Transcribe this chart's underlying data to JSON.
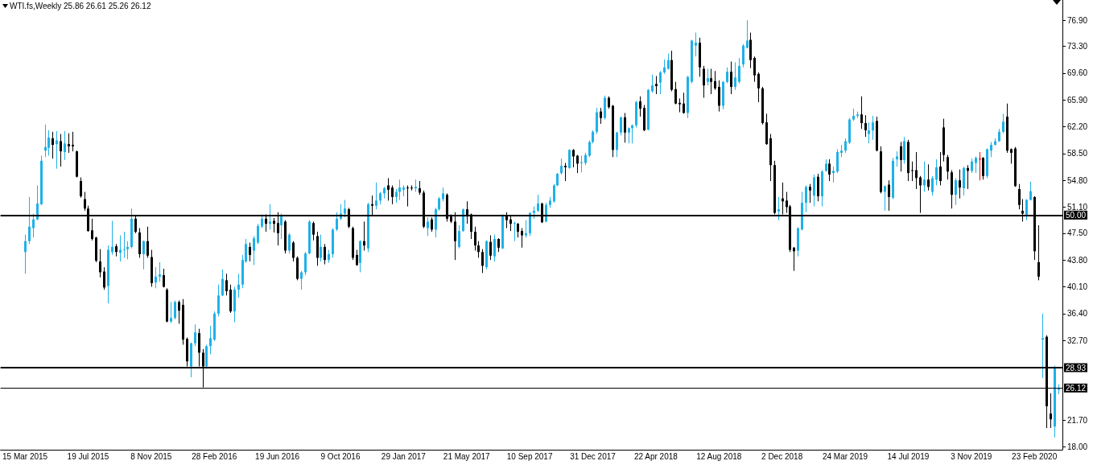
{
  "chart_data": {
    "type": "candlestick",
    "title": "WTI.fs,Weekly 25.86 26.61 25.26 26.12",
    "categories": [
      "15 Mar 2015",
      null,
      null,
      null,
      null,
      null,
      null,
      null,
      null,
      null,
      null,
      null,
      null,
      null,
      null,
      null,
      "19 Jul 2015",
      null,
      null,
      null,
      null,
      null,
      null,
      null,
      null,
      null,
      null,
      null,
      null,
      null,
      null,
      null,
      "8 Nov 2015",
      null,
      null,
      null,
      null,
      null,
      null,
      null,
      null,
      null,
      null,
      null,
      null,
      null,
      null,
      null,
      "28 Feb 2016",
      null,
      null,
      null,
      null,
      null,
      null,
      null,
      null,
      null,
      null,
      null,
      null,
      null,
      null,
      null,
      "19 Jun 2016",
      null,
      null,
      null,
      null,
      null,
      null,
      null,
      null,
      null,
      null,
      null,
      null,
      null,
      null,
      null,
      "9 Oct 2016",
      null,
      null,
      null,
      null,
      null,
      null,
      null,
      null,
      null,
      null,
      null,
      null,
      null,
      null,
      null,
      "29 Jan 2017",
      null,
      null,
      null,
      null,
      null,
      null,
      null,
      null,
      null,
      null,
      null,
      null,
      null,
      null,
      null,
      "21 May 2017",
      null,
      null,
      null,
      null,
      null,
      null,
      null,
      null,
      null,
      null,
      null,
      null,
      null,
      null,
      null,
      "10 Sep 2017",
      null,
      null,
      null,
      null,
      null,
      null,
      null,
      null,
      null,
      null,
      null,
      null,
      null,
      null,
      null,
      "31 Dec 2017",
      null,
      null,
      null,
      null,
      null,
      null,
      null,
      null,
      null,
      null,
      null,
      null,
      null,
      null,
      null,
      "22 Apr 2018",
      null,
      null,
      null,
      null,
      null,
      null,
      null,
      null,
      null,
      null,
      null,
      null,
      null,
      null,
      null,
      "12 Aug 2018",
      null,
      null,
      null,
      null,
      null,
      null,
      null,
      null,
      null,
      null,
      null,
      null,
      null,
      null,
      null,
      "2 Dec 2018",
      null,
      null,
      null,
      null,
      null,
      null,
      null,
      null,
      null,
      null,
      null,
      null,
      null,
      null,
      null,
      "24 Mar 2019",
      null,
      null,
      null,
      null,
      null,
      null,
      null,
      null,
      null,
      null,
      null,
      null,
      null,
      null,
      null,
      "14 Jul 2019",
      null,
      null,
      null,
      null,
      null,
      null,
      null,
      null,
      null,
      null,
      null,
      null,
      null,
      null,
      null,
      "3 Nov 2019",
      null,
      null,
      null,
      null,
      null,
      null,
      null,
      null,
      null,
      null,
      null,
      null,
      null,
      null,
      null,
      "23 Feb 2020",
      null,
      null,
      null,
      null,
      null,
      null
    ],
    "ohlc": [
      [
        44.9,
        47.3,
        41.9,
        46.4
      ],
      [
        46.4,
        52.5,
        46.0,
        48.4
      ],
      [
        48.2,
        50.2,
        46.9,
        49.4
      ],
      [
        49.4,
        54.1,
        49.3,
        51.6
      ],
      [
        51.5,
        58.2,
        51.4,
        57.5
      ],
      [
        58.9,
        62.5,
        58.0,
        59.4
      ],
      [
        59.3,
        61.7,
        58.2,
        60.7
      ],
      [
        60.6,
        61.5,
        57.8,
        59.7
      ],
      [
        59.8,
        61.6,
        56.4,
        60.3
      ],
      [
        60.2,
        61.2,
        56.7,
        58.8
      ],
      [
        58.7,
        61.6,
        57.6,
        59.9
      ],
      [
        59.8,
        61.3,
        58.6,
        59.5
      ],
      [
        59.7,
        61.5,
        58.8,
        59.5
      ],
      [
        58.8,
        58.9,
        55.2,
        55.3
      ],
      [
        54.7,
        55.2,
        52.4,
        52.6
      ],
      [
        52.2,
        53.2,
        50.6,
        50.9
      ],
      [
        50.9,
        51.3,
        47.7,
        47.8
      ],
      [
        47.9,
        49.5,
        46.5,
        46.7
      ],
      [
        46.9,
        47.0,
        43.5,
        43.7
      ],
      [
        43.6,
        45.3,
        41.4,
        42.1
      ],
      [
        42.2,
        42.8,
        39.7,
        40.0
      ],
      [
        40.2,
        45.8,
        37.8,
        45.2
      ],
      [
        44.9,
        49.2,
        44.5,
        45.6
      ],
      [
        45.7,
        46.0,
        44.3,
        44.9
      ],
      [
        44.8,
        47.2,
        43.6,
        45.2
      ],
      [
        45.2,
        47.7,
        44.1,
        45.3
      ],
      [
        45.3,
        46.4,
        43.9,
        45.6
      ],
      [
        45.6,
        50.9,
        45.4,
        49.5
      ],
      [
        49.5,
        50.0,
        47.5,
        47.7
      ],
      [
        47.6,
        48.2,
        44.1,
        44.6
      ],
      [
        44.6,
        46.5,
        42.5,
        46.4
      ],
      [
        46.4,
        48.4,
        44.1,
        44.4
      ],
      [
        44.2,
        45.2,
        40.1,
        40.6
      ],
      [
        40.7,
        42.8,
        39.9,
        41.5
      ],
      [
        41.5,
        43.5,
        40.8,
        41.8
      ],
      [
        41.7,
        42.6,
        40.0,
        40.1
      ],
      [
        39.7,
        39.9,
        35.2,
        35.3
      ],
      [
        35.3,
        38.0,
        35.1,
        35.8
      ],
      [
        35.8,
        38.2,
        35.6,
        38.0
      ],
      [
        38.0,
        38.2,
        35.0,
        36.8
      ],
      [
        37.6,
        38.4,
        32.1,
        32.8
      ],
      [
        32.9,
        33.1,
        29.1,
        29.8
      ],
      [
        29.1,
        32.4,
        27.6,
        32.3
      ],
      [
        32.3,
        34.9,
        31.9,
        33.8
      ],
      [
        33.7,
        34.3,
        29.1,
        31.0
      ],
      [
        31.0,
        31.5,
        26.2,
        29.1
      ],
      [
        29.1,
        32.1,
        28.8,
        31.9
      ],
      [
        31.9,
        34.7,
        30.8,
        33.0
      ],
      [
        32.8,
        36.7,
        32.6,
        36.4
      ],
      [
        36.4,
        40.4,
        36.0,
        38.9
      ],
      [
        38.9,
        42.5,
        38.8,
        41.2
      ],
      [
        41.0,
        41.9,
        38.9,
        39.5
      ],
      [
        39.7,
        40.4,
        36.5,
        36.7
      ],
      [
        36.7,
        40.1,
        35.2,
        39.7
      ],
      [
        39.7,
        41.9,
        38.6,
        40.4
      ],
      [
        40.4,
        44.5,
        39.9,
        43.8
      ],
      [
        43.6,
        46.7,
        43.4,
        46.0
      ],
      [
        45.6,
        46.2,
        43.6,
        44.5
      ],
      [
        45.1,
        47.1,
        43.1,
        46.8
      ],
      [
        46.2,
        48.8,
        46.0,
        48.5
      ],
      [
        48.4,
        50.1,
        48.2,
        49.5
      ],
      [
        49.5,
        50.1,
        47.7,
        48.8
      ],
      [
        48.8,
        51.5,
        48.0,
        49.1
      ],
      [
        49.2,
        49.6,
        47.6,
        48.8
      ],
      [
        48.9,
        50.4,
        45.8,
        47.5
      ],
      [
        48.6,
        50.2,
        46.7,
        49.8
      ],
      [
        49.1,
        49.3,
        44.7,
        45.1
      ],
      [
        45.1,
        47.5,
        44.7,
        47.3
      ],
      [
        46.2,
        46.4,
        43.6,
        44.1
      ],
      [
        44.1,
        44.3,
        41.0,
        41.2
      ],
      [
        41.2,
        42.3,
        39.7,
        42.1
      ],
      [
        42.1,
        44.9,
        41.7,
        44.7
      ],
      [
        44.7,
        49.3,
        44.6,
        49.1
      ],
      [
        48.9,
        49.1,
        46.5,
        47.3
      ],
      [
        47.1,
        47.7,
        43.0,
        44.1
      ],
      [
        44.1,
        47.3,
        43.6,
        45.6
      ],
      [
        45.6,
        46.0,
        43.2,
        43.8
      ],
      [
        43.8,
        45.2,
        43.4,
        44.6
      ],
      [
        44.6,
        48.2,
        44.1,
        48.0
      ],
      [
        48.0,
        50.4,
        47.8,
        49.5
      ],
      [
        49.5,
        51.5,
        49.3,
        50.2
      ],
      [
        50.2,
        52.1,
        49.7,
        50.9
      ],
      [
        50.8,
        51.0,
        48.2,
        48.4
      ],
      [
        48.2,
        48.4,
        43.8,
        44.1
      ],
      [
        44.5,
        45.2,
        43.0,
        43.1
      ],
      [
        43.4,
        46.5,
        42.1,
        46.4
      ],
      [
        46.4,
        49.1,
        45.1,
        45.8
      ],
      [
        45.4,
        51.7,
        44.9,
        51.5
      ],
      [
        51.5,
        52.7,
        49.9,
        51.3
      ],
      [
        51.3,
        54.5,
        50.8,
        52.0
      ],
      [
        52.0,
        53.2,
        51.5,
        53.0
      ],
      [
        53.0,
        53.9,
        52.3,
        53.7
      ],
      [
        54.1,
        55.1,
        52.0,
        53.5
      ],
      [
        53.8,
        54.1,
        51.5,
        52.5
      ],
      [
        52.5,
        53.6,
        51.7,
        53.2
      ],
      [
        53.2,
        54.9,
        52.1,
        53.8
      ],
      [
        53.5,
        54.1,
        52.6,
        53.8
      ],
      [
        53.8,
        54.1,
        51.2,
        53.7
      ],
      [
        53.8,
        54.1,
        53.4,
        53.7
      ],
      [
        53.7,
        54.9,
        53.2,
        53.9
      ],
      [
        53.7,
        54.7,
        52.8,
        53.1
      ],
      [
        53.1,
        53.4,
        48.2,
        48.4
      ],
      [
        48.2,
        49.7,
        47.1,
        49.1
      ],
      [
        49.4,
        49.7,
        47.7,
        48.0
      ],
      [
        48.0,
        51.0,
        46.9,
        50.8
      ],
      [
        50.8,
        52.5,
        50.6,
        52.3
      ],
      [
        52.2,
        53.8,
        51.9,
        53.0
      ],
      [
        52.8,
        53.0,
        49.1,
        49.5
      ],
      [
        49.8,
        50.1,
        48.9,
        49.1
      ],
      [
        49.1,
        50.4,
        43.8,
        46.4
      ],
      [
        45.6,
        48.6,
        45.4,
        47.8
      ],
      [
        47.8,
        50.9,
        47.7,
        50.8
      ],
      [
        50.8,
        51.9,
        48.8,
        49.8
      ],
      [
        50.1,
        50.2,
        46.7,
        47.7
      ],
      [
        47.7,
        48.4,
        45.1,
        45.8
      ],
      [
        45.8,
        46.4,
        44.1,
        44.9
      ],
      [
        44.9,
        45.3,
        42.0,
        43.0
      ],
      [
        42.8,
        46.5,
        42.5,
        46.4
      ],
      [
        46.3,
        47.2,
        43.8,
        44.4
      ],
      [
        44.3,
        47.3,
        43.6,
        46.7
      ],
      [
        46.7,
        46.8,
        44.9,
        45.5
      ],
      [
        45.4,
        50.1,
        45.3,
        49.8
      ],
      [
        50.0,
        50.4,
        48.2,
        49.3
      ],
      [
        49.4,
        50.0,
        47.8,
        48.8
      ],
      [
        48.8,
        49.1,
        46.4,
        48.9
      ],
      [
        48.8,
        48.9,
        46.9,
        47.7
      ],
      [
        47.8,
        48.2,
        45.5,
        47.2
      ],
      [
        47.2,
        49.3,
        46.9,
        47.5
      ],
      [
        47.5,
        50.4,
        47.1,
        50.3
      ],
      [
        50.3,
        51.2,
        49.5,
        50.6
      ],
      [
        50.6,
        52.8,
        50.4,
        51.6
      ],
      [
        51.6,
        51.7,
        48.9,
        49.0
      ],
      [
        49.1,
        51.7,
        49.0,
        51.4
      ],
      [
        51.4,
        52.5,
        51.0,
        52.0
      ],
      [
        51.9,
        54.3,
        51.7,
        54.1
      ],
      [
        54.1,
        55.8,
        54.0,
        55.7
      ],
      [
        55.8,
        57.8,
        55.6,
        56.8
      ],
      [
        56.8,
        57.2,
        54.7,
        56.6
      ],
      [
        56.5,
        59.1,
        56.4,
        59.0
      ],
      [
        59.0,
        59.1,
        56.6,
        58.1
      ],
      [
        58.2,
        58.3,
        55.8,
        57.1
      ],
      [
        57.2,
        58.2,
        55.9,
        57.3
      ],
      [
        57.2,
        58.6,
        56.9,
        58.3
      ],
      [
        58.2,
        60.3,
        58.0,
        60.1
      ],
      [
        60.1,
        61.7,
        59.9,
        61.5
      ],
      [
        61.5,
        64.8,
        61.2,
        64.2
      ],
      [
        64.3,
        64.8,
        62.6,
        63.4
      ],
      [
        63.4,
        66.5,
        63.2,
        66.2
      ],
      [
        66.2,
        66.4,
        64.7,
        64.9
      ],
      [
        65.1,
        65.2,
        58.0,
        59.0
      ],
      [
        59.0,
        61.5,
        58.0,
        61.4
      ],
      [
        61.4,
        63.6,
        61.0,
        63.5
      ],
      [
        63.5,
        64.1,
        60.0,
        61.4
      ],
      [
        61.4,
        62.1,
        59.9,
        62.0
      ],
      [
        62.0,
        62.5,
        59.9,
        62.4
      ],
      [
        62.4,
        65.8,
        62.1,
        65.6
      ],
      [
        65.7,
        66.4,
        63.6,
        64.7
      ],
      [
        64.8,
        65.2,
        61.6,
        61.7
      ],
      [
        61.8,
        67.4,
        61.7,
        67.3
      ],
      [
        67.1,
        69.4,
        66.9,
        67.9
      ],
      [
        68.1,
        69.2,
        66.7,
        67.8
      ],
      [
        68.3,
        69.9,
        66.7,
        69.7
      ],
      [
        69.7,
        71.5,
        69.5,
        70.4
      ],
      [
        70.2,
        72.3,
        70.1,
        71.4
      ],
      [
        71.4,
        72.7,
        67.1,
        67.3
      ],
      [
        67.4,
        68.4,
        65.3,
        65.4
      ],
      [
        65.5,
        66.1,
        64.2,
        65.3
      ],
      [
        65.4,
        66.9,
        64.0,
        64.1
      ],
      [
        64.1,
        69.2,
        63.4,
        69.1
      ],
      [
        68.4,
        74.2,
        68.2,
        74.1
      ],
      [
        73.4,
        75.2,
        71.9,
        73.8
      ],
      [
        73.8,
        74.5,
        69.1,
        70.4
      ],
      [
        70.2,
        70.6,
        66.2,
        67.9
      ],
      [
        68.4,
        70.2,
        67.9,
        68.9
      ],
      [
        68.9,
        70.2,
        66.7,
        68.4
      ],
      [
        68.5,
        69.9,
        67.3,
        67.5
      ],
      [
        67.7,
        68.6,
        64.3,
        65.1
      ],
      [
        65.1,
        68.5,
        64.6,
        68.4
      ],
      [
        68.4,
        70.4,
        68.2,
        69.8
      ],
      [
        69.8,
        71.2,
        66.7,
        67.7
      ],
      [
        67.7,
        71.1,
        67.3,
        69.0
      ],
      [
        68.4,
        71.7,
        68.2,
        70.6
      ],
      [
        70.8,
        73.6,
        70.4,
        73.4
      ],
      [
        73.1,
        76.9,
        73.0,
        74.1
      ],
      [
        74.2,
        75.2,
        70.3,
        71.4
      ],
      [
        71.7,
        71.9,
        68.4,
        69.3
      ],
      [
        69.5,
        69.7,
        65.6,
        67.5
      ],
      [
        67.5,
        67.7,
        62.5,
        62.7
      ],
      [
        62.8,
        64.0,
        59.7,
        59.8
      ],
      [
        60.6,
        61.2,
        54.7,
        56.9
      ],
      [
        56.9,
        57.5,
        50.1,
        50.3
      ],
      [
        50.5,
        52.5,
        49.3,
        50.8
      ],
      [
        52.3,
        54.5,
        50.1,
        51.9
      ],
      [
        52.0,
        53.2,
        50.3,
        51.1
      ],
      [
        51.2,
        51.4,
        44.9,
        45.2
      ],
      [
        45.5,
        45.6,
        42.3,
        45.0
      ],
      [
        45.1,
        48.3,
        44.3,
        48.2
      ],
      [
        48.0,
        53.2,
        47.9,
        51.7
      ],
      [
        51.7,
        54.1,
        50.4,
        53.9
      ],
      [
        53.9,
        54.3,
        51.7,
        53.4
      ],
      [
        52.7,
        55.6,
        51.2,
        55.2
      ],
      [
        55.3,
        55.7,
        51.9,
        52.6
      ],
      [
        52.6,
        56.2,
        51.2,
        56.0
      ],
      [
        56.1,
        57.7,
        56.0,
        57.1
      ],
      [
        57.1,
        57.7,
        54.7,
        55.6
      ],
      [
        55.8,
        56.7,
        54.5,
        56.1
      ],
      [
        56.0,
        59.1,
        55.8,
        58.7
      ],
      [
        58.6,
        59.7,
        58.0,
        58.9
      ],
      [
        58.9,
        60.6,
        58.6,
        60.2
      ],
      [
        60.0,
        63.4,
        59.8,
        63.2
      ],
      [
        63.2,
        64.7,
        63.0,
        63.7
      ],
      [
        63.7,
        64.3,
        63.4,
        63.9
      ],
      [
        63.9,
        66.4,
        61.9,
        62.7
      ],
      [
        62.7,
        63.8,
        60.8,
        61.7
      ],
      [
        61.2,
        62.8,
        59.9,
        61.7
      ],
      [
        61.7,
        63.7,
        60.4,
        62.8
      ],
      [
        63.0,
        63.6,
        58.8,
        58.9
      ],
      [
        58.8,
        59.5,
        53.0,
        53.2
      ],
      [
        53.2,
        54.1,
        50.6,
        54.0
      ],
      [
        54.2,
        54.8,
        50.6,
        52.5
      ],
      [
        52.4,
        57.9,
        52.2,
        57.5
      ],
      [
        57.7,
        58.8,
        56.7,
        58.1
      ],
      [
        59.5,
        60.1,
        56.0,
        57.6
      ],
      [
        57.6,
        60.8,
        57.1,
        60.2
      ],
      [
        60.1,
        60.4,
        54.7,
        55.8
      ],
      [
        56.2,
        57.4,
        54.7,
        56.1
      ],
      [
        56.2,
        58.7,
        53.6,
        55.1
      ],
      [
        55.2,
        55.4,
        50.3,
        54.1
      ],
      [
        54.1,
        57.4,
        53.2,
        54.9
      ],
      [
        54.9,
        57.0,
        53.4,
        53.9
      ],
      [
        53.2,
        55.4,
        52.7,
        55.1
      ],
      [
        54.9,
        57.7,
        54.1,
        56.6
      ],
      [
        56.7,
        58.7,
        54.1,
        54.7
      ],
      [
        62.1,
        63.3,
        57.4,
        58.3
      ],
      [
        58.0,
        58.3,
        54.9,
        56.0
      ],
      [
        55.9,
        56.2,
        50.9,
        52.8
      ],
      [
        52.8,
        55.1,
        51.4,
        54.8
      ],
      [
        54.8,
        56.3,
        52.3,
        53.8
      ],
      [
        53.7,
        56.7,
        52.7,
        56.5
      ],
      [
        56.5,
        56.9,
        53.6,
        56.1
      ],
      [
        56.1,
        57.8,
        55.8,
        57.4
      ],
      [
        57.2,
        58.1,
        55.8,
        57.9
      ],
      [
        57.8,
        58.7,
        54.8,
        57.8
      ],
      [
        57.9,
        58.0,
        54.9,
        55.4
      ],
      [
        55.4,
        59.2,
        55.1,
        59.1
      ],
      [
        58.9,
        60.1,
        58.0,
        59.7
      ],
      [
        59.7,
        60.6,
        59.6,
        60.2
      ],
      [
        60.2,
        61.9,
        60.1,
        61.5
      ],
      [
        61.5,
        64.0,
        61.3,
        62.9
      ],
      [
        63.6,
        65.4,
        58.6,
        58.9
      ],
      [
        59.1,
        59.2,
        57.1,
        58.6
      ],
      [
        59.2,
        59.4,
        53.9,
        54.0
      ],
      [
        53.6,
        54.3,
        50.8,
        51.4
      ],
      [
        50.6,
        52.2,
        49.1,
        50.2
      ],
      [
        49.9,
        52.2,
        49.3,
        52.1
      ],
      [
        52.1,
        54.6,
        52.0,
        53.3
      ],
      [
        52.5,
        52.6,
        43.8,
        45.0
      ],
      [
        43.5,
        48.6,
        41.0,
        41.5
      ],
      [
        32.8,
        36.4,
        27.5,
        33.0
      ],
      [
        33.2,
        33.4,
        20.6,
        23.6
      ],
      [
        22.6,
        25.4,
        20.6,
        21.8
      ],
      [
        20.8,
        29.2,
        19.3,
        28.9
      ],
      [
        25.86,
        26.61,
        25.26,
        26.12
      ]
    ],
    "colors": [
      "#1fb1e8",
      "#1fb1e8",
      "#1fb1e8",
      "#1fb1e8",
      "#1fb1e8",
      "#1fb1e8",
      "#1fb1e8",
      "#000000",
      "#1fb1e8",
      "#000000",
      "#1fb1e8",
      "#000000",
      "#000000",
      "#000000",
      "#000000",
      "#000000",
      "#000000",
      "#000000",
      "#000000",
      "#000000",
      "#000000",
      "#1fb1e8",
      "#1fb1e8",
      "#000000",
      "#1fb1e8",
      "#1fb1e8",
      "#1fb1e8",
      "#1fb1e8",
      "#000000",
      "#000000",
      "#1fb1e8",
      "#000000",
      "#000000",
      "#1fb1e8",
      "#1fb1e8",
      "#000000",
      "#000000",
      "#1fb1e8",
      "#1fb1e8",
      "#000000",
      "#000000",
      "#000000",
      "#1fb1e8",
      "#1fb1e8",
      "#000000",
      "#000000",
      "#1fb1e8",
      "#1fb1e8",
      "#1fb1e8",
      "#1fb1e8",
      "#1fb1e8",
      "#000000",
      "#000000",
      "#1fb1e8",
      "#1fb1e8",
      "#1fb1e8",
      "#1fb1e8",
      "#000000",
      "#1fb1e8",
      "#1fb1e8",
      "#1fb1e8",
      "#000000",
      "#1fb1e8",
      "#000000",
      "#000000",
      "#1fb1e8",
      "#000000",
      "#1fb1e8",
      "#000000",
      "#000000",
      "#1fb1e8",
      "#1fb1e8",
      "#1fb1e8",
      "#000000",
      "#000000",
      "#1fb1e8",
      "#000000",
      "#1fb1e8",
      "#1fb1e8",
      "#1fb1e8",
      "#1fb1e8",
      "#1fb1e8",
      "#000000",
      "#000000",
      "#000000",
      "#1fb1e8",
      "#000000",
      "#1fb1e8",
      "#000000",
      "#1fb1e8",
      "#1fb1e8",
      "#1fb1e8",
      "#000000",
      "#000000",
      "#1fb1e8",
      "#1fb1e8",
      "#1fb1e8",
      "#000000",
      "#000000",
      "#1fb1e8",
      "#000000",
      "#000000",
      "#1fb1e8",
      "#000000",
      "#1fb1e8",
      "#1fb1e8",
      "#1fb1e8",
      "#000000",
      "#000000",
      "#000000",
      "#1fb1e8",
      "#1fb1e8",
      "#000000",
      "#000000",
      "#000000",
      "#000000",
      "#000000",
      "#1fb1e8",
      "#000000",
      "#1fb1e8",
      "#000000",
      "#1fb1e8",
      "#000000",
      "#000000",
      "#1fb1e8",
      "#000000",
      "#000000",
      "#1fb1e8",
      "#1fb1e8",
      "#1fb1e8",
      "#1fb1e8",
      "#000000",
      "#1fb1e8",
      "#1fb1e8",
      "#1fb1e8",
      "#1fb1e8",
      "#1fb1e8",
      "#000000",
      "#1fb1e8",
      "#000000",
      "#000000",
      "#1fb1e8",
      "#1fb1e8",
      "#1fb1e8",
      "#1fb1e8",
      "#1fb1e8",
      "#000000",
      "#1fb1e8",
      "#000000",
      "#000000",
      "#1fb1e8",
      "#1fb1e8",
      "#000000",
      "#1fb1e8",
      "#1fb1e8",
      "#1fb1e8",
      "#000000",
      "#000000",
      "#1fb1e8",
      "#1fb1e8",
      "#000000",
      "#1fb1e8",
      "#1fb1e8",
      "#1fb1e8",
      "#000000",
      "#000000",
      "#000000",
      "#000000",
      "#1fb1e8",
      "#1fb1e8",
      "#1fb1e8",
      "#000000",
      "#000000",
      "#1fb1e8",
      "#000000",
      "#000000",
      "#000000",
      "#1fb1e8",
      "#1fb1e8",
      "#000000",
      "#1fb1e8",
      "#1fb1e8",
      "#1fb1e8",
      "#1fb1e8",
      "#000000",
      "#000000",
      "#000000",
      "#000000",
      "#000000",
      "#000000",
      "#000000",
      "#1fb1e8",
      "#000000",
      "#000000",
      "#000000",
      "#000000",
      "#1fb1e8",
      "#1fb1e8",
      "#1fb1e8",
      "#000000",
      "#1fb1e8",
      "#000000",
      "#1fb1e8",
      "#1fb1e8",
      "#000000",
      "#1fb1e8",
      "#1fb1e8",
      "#1fb1e8",
      "#1fb1e8",
      "#1fb1e8",
      "#1fb1e8",
      "#1fb1e8",
      "#000000",
      "#000000",
      "#1fb1e8",
      "#1fb1e8",
      "#000000",
      "#000000",
      "#1fb1e8",
      "#000000",
      "#1fb1e8",
      "#1fb1e8",
      "#000000",
      "#1fb1e8",
      "#000000",
      "#000000",
      "#000000",
      "#000000",
      "#1fb1e8",
      "#000000",
      "#1fb1e8",
      "#1fb1e8",
      "#000000",
      "#000000",
      "#000000",
      "#000000",
      "#1fb1e8",
      "#000000",
      "#1fb1e8",
      "#000000",
      "#1fb1e8",
      "#1fb1e8",
      "#ff0000",
      "#000000",
      "#1fb1e8",
      "#1fb1e8",
      "#1fb1e8",
      "#1fb1e8",
      "#1fb1e8",
      "#000000",
      "#000000",
      "#000000",
      "#000000",
      "#000000",
      "#1fb1e8",
      "#1fb1e8",
      "#000000",
      "#000000",
      "#1fb1e8",
      "#000000",
      "#000000",
      "#1fb1e8",
      "#1fb1e8"
    ],
    "ylim": [
      17.6,
      79.7
    ],
    "yticks": [
      {
        "value": 18,
        "label": "18.00"
      },
      {
        "value": 21.7,
        "label": "21.70"
      },
      {
        "value": 32.7,
        "label": "32.70"
      },
      {
        "value": 36.4,
        "label": "36.40"
      },
      {
        "value": 40.1,
        "label": "40.10"
      },
      {
        "value": 43.8,
        "label": "43.80"
      },
      {
        "value": 47.5,
        "label": "47.50"
      },
      {
        "value": 51.1,
        "label": "51.10"
      },
      {
        "value": 54.8,
        "label": "54.80"
      },
      {
        "value": 58.5,
        "label": "58.50"
      },
      {
        "value": 62.2,
        "label": "62.20"
      },
      {
        "value": 65.9,
        "label": "65.90"
      },
      {
        "value": 69.6,
        "label": "69.60"
      },
      {
        "value": 73.3,
        "label": "73.30"
      },
      {
        "value": 76.9,
        "label": "76.90"
      }
    ],
    "ref_lines": [
      {
        "axis": "y",
        "value": 50,
        "label": "50.00",
        "color": "#000000"
      },
      {
        "axis": "y",
        "value": 28.93,
        "label": "28.93",
        "color": "#000000"
      },
      {
        "axis": "y",
        "value": 26.12,
        "label": "26.12",
        "color": "#000000"
      }
    ]
  }
}
